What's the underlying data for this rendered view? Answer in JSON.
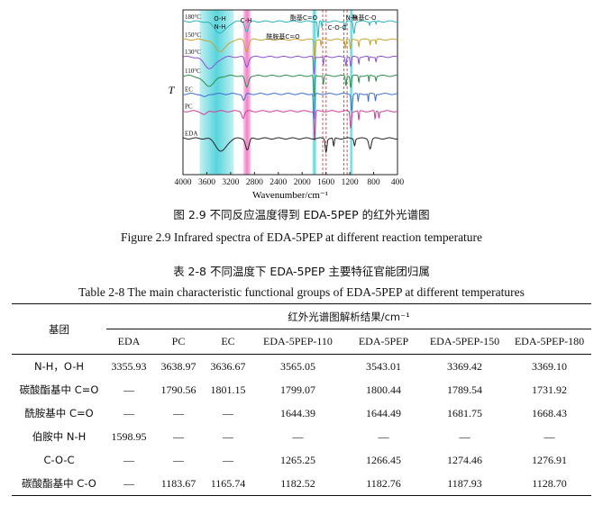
{
  "figure": {
    "caption_cn": "图 2.9  不同反应温度得到 EDA-5PEP 的红外光谱图",
    "caption_en": "Figure 2.9 Infrared spectra of EDA-5PEP at different reaction temperature"
  },
  "chart_data": {
    "type": "line",
    "title": "",
    "xlabel": "Wavenumber/cm⁻¹",
    "ylabel": "T",
    "xlim": [
      4000,
      400
    ],
    "x_ticks": [
      4000,
      3600,
      3200,
      2800,
      2400,
      2000,
      1600,
      1200,
      800,
      400
    ],
    "series": [
      {
        "name": "180°C",
        "color": "#2ab3b8",
        "baseline": 0.93,
        "dips": [
          [
            3370,
            0.07,
            140
          ],
          [
            2930,
            0.06,
            40
          ],
          [
            1732,
            0.1,
            14
          ],
          [
            1668,
            0.04,
            10
          ],
          [
            1277,
            0.05,
            12
          ],
          [
            1129,
            0.07,
            18
          ],
          [
            870,
            0.02,
            8
          ],
          [
            760,
            0.02,
            10
          ]
        ]
      },
      {
        "name": "150°C",
        "color": "#c8a12e",
        "baseline": 0.82,
        "dips": [
          [
            3370,
            0.07,
            140
          ],
          [
            2930,
            0.07,
            40
          ],
          [
            1790,
            0.12,
            14
          ],
          [
            1682,
            0.04,
            10
          ],
          [
            1274,
            0.05,
            12
          ],
          [
            1188,
            0.06,
            16
          ],
          [
            1050,
            0.04,
            10
          ],
          [
            860,
            0.03,
            8
          ],
          [
            760,
            0.03,
            10
          ]
        ]
      },
      {
        "name": "130°C",
        "color": "#8a4fd4",
        "baseline": 0.715,
        "dips": [
          [
            3543,
            0.07,
            140
          ],
          [
            2930,
            0.06,
            40
          ],
          [
            1800,
            0.11,
            14
          ],
          [
            1644,
            0.05,
            10
          ],
          [
            1266,
            0.05,
            12
          ],
          [
            1183,
            0.06,
            16
          ],
          [
            1050,
            0.04,
            10
          ],
          [
            880,
            0.03,
            8
          ],
          [
            760,
            0.03,
            10
          ]
        ]
      },
      {
        "name": "110°C",
        "color": "#2e8b4a",
        "baseline": 0.6,
        "dips": [
          [
            3565,
            0.06,
            140
          ],
          [
            2930,
            0.07,
            40
          ],
          [
            1799,
            0.13,
            14
          ],
          [
            1644,
            0.05,
            10
          ],
          [
            1265,
            0.06,
            12
          ],
          [
            1183,
            0.07,
            16
          ],
          [
            1050,
            0.04,
            10
          ],
          [
            880,
            0.04,
            8
          ],
          [
            760,
            0.03,
            10
          ]
        ]
      },
      {
        "name": "EC",
        "color": "#3b6bd6",
        "baseline": 0.49,
        "dips": [
          [
            3637,
            0.02,
            60
          ],
          [
            2980,
            0.04,
            30
          ],
          [
            1801,
            0.16,
            14
          ],
          [
            1166,
            0.1,
            16
          ],
          [
            1060,
            0.05,
            10
          ],
          [
            890,
            0.05,
            8
          ],
          [
            770,
            0.04,
            10
          ]
        ]
      },
      {
        "name": "PC",
        "color": "#d13c9a",
        "baseline": 0.385,
        "dips": [
          [
            3639,
            0.02,
            60
          ],
          [
            2990,
            0.04,
            30
          ],
          [
            1791,
            0.18,
            14
          ],
          [
            1184,
            0.1,
            16
          ],
          [
            1050,
            0.06,
            10
          ],
          [
            776,
            0.05,
            10
          ],
          [
            712,
            0.04,
            10
          ]
        ]
      },
      {
        "name": "EDA",
        "color": "#222222",
        "baseline": 0.22,
        "dips": [
          [
            3356,
            0.08,
            120
          ],
          [
            2920,
            0.07,
            40
          ],
          [
            1599,
            0.08,
            20
          ],
          [
            1470,
            0.05,
            14
          ],
          [
            1120,
            0.04,
            16
          ],
          [
            860,
            0.06,
            30
          ]
        ]
      }
    ],
    "bands": [
      {
        "label": "O-H\nN-H",
        "from": 3720,
        "to": 3150,
        "color": "#4fd3d9"
      },
      {
        "label": "C-H",
        "from": 2990,
        "to": 2860,
        "color": "#f07ac6"
      },
      {
        "label": "酯基C=O",
        "from": 1830,
        "to": 1760,
        "color": "#56d4dc"
      },
      {
        "label": "N-H",
        "at": 1598,
        "style": "dashed",
        "color": "#e0504f"
      },
      {
        "label": "C-O-C",
        "from": 1300,
        "to": 1245,
        "style": "dashed",
        "color": "#e0504f"
      },
      {
        "label": "酯基C-O",
        "from": 1200,
        "to": 1150,
        "color": "#56d4dc"
      },
      {
        "label": "酰胺基C=O",
        "at": 1655,
        "style": "dashed",
        "color": "#e0504f"
      }
    ],
    "grid": false
  },
  "table": {
    "caption_cn": "表 2-8  不同温度下 EDA-5PEP 主要特征官能团归属",
    "caption_en": "Table 2-8 The main characteristic functional groups of EDA-5PEP at different temperatures",
    "group_header": "基团",
    "span_header": "红外光谱图解析结果/cm⁻¹",
    "columns": [
      "EDA",
      "PC",
      "EC",
      "EDA-5PEP-110",
      "EDA-5PEP",
      "EDA-5PEP-150",
      "EDA-5PEP-180"
    ],
    "rows": [
      {
        "label": "N-H，O-H",
        "values": [
          "3355.93",
          "3638.97",
          "3636.67",
          "3565.05",
          "3543.01",
          "3369.42",
          "3369.10"
        ]
      },
      {
        "label": "碳酸酯基中 C=O",
        "values": [
          "—",
          "1790.56",
          "1801.15",
          "1799.07",
          "1800.44",
          "1789.54",
          "1731.92"
        ]
      },
      {
        "label": "酰胺基中 C=O",
        "values": [
          "—",
          "—",
          "—",
          "1644.39",
          "1644.49",
          "1681.75",
          "1668.43"
        ]
      },
      {
        "label": "伯胺中 N-H",
        "values": [
          "1598.95",
          "—",
          "—",
          "—",
          "—",
          "—",
          "—"
        ]
      },
      {
        "label": "C-O-C",
        "values": [
          "—",
          "—",
          "—",
          "1265.25",
          "1266.45",
          "1274.46",
          "1276.91"
        ]
      },
      {
        "label": "碳酸酯基中 C-O",
        "values": [
          "—",
          "1183.67",
          "1165.74",
          "1182.52",
          "1182.76",
          "1187.93",
          "1128.70"
        ]
      }
    ]
  }
}
